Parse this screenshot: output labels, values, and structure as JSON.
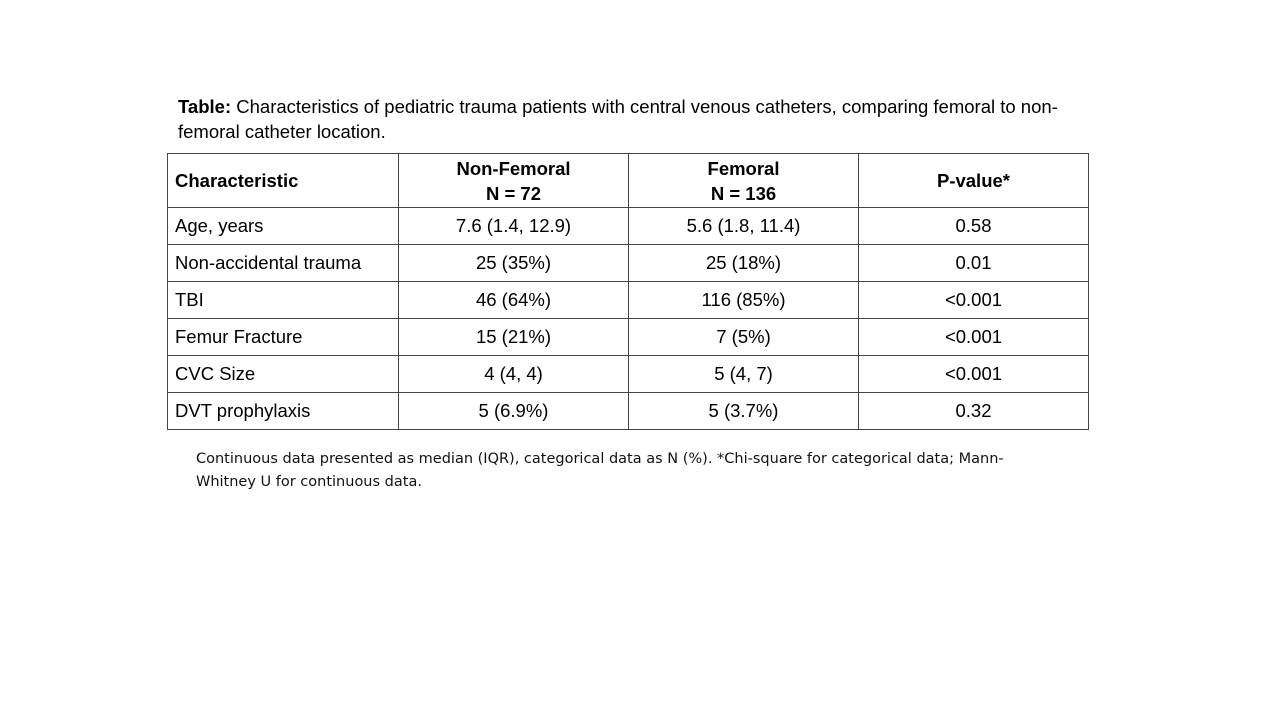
{
  "caption": {
    "label": "Table:",
    "text": "Characteristics of pediatric trauma patients with central venous catheters, comparing femoral to non-femoral catheter location."
  },
  "table": {
    "header": [
      [
        "Characteristic"
      ],
      [
        "Non-Femoral",
        "N = 72"
      ],
      [
        "Femoral",
        "N = 136"
      ],
      [
        "P-value*"
      ]
    ],
    "rows": [
      [
        "Age, years",
        "7.6 (1.4, 12.9)",
        "5.6 (1.8, 11.4)",
        "0.58"
      ],
      [
        "Non-accidental trauma",
        "25 (35%)",
        "25 (18%)",
        "0.01"
      ],
      [
        "TBI",
        "46 (64%)",
        "116 (85%)",
        "<0.001"
      ],
      [
        "Femur Fracture",
        "15 (21%)",
        "7 (5%)",
        "<0.001"
      ],
      [
        "CVC Size",
        "4 (4, 4)",
        "5 (4, 7)",
        "<0.001"
      ],
      [
        "DVT prophylaxis",
        "5 (6.9%)",
        "5 (3.7%)",
        "0.32"
      ]
    ]
  },
  "footnote": "Continuous data presented as median (IQR), categorical data as N (%). *Chi-square for categorical data; Mann-Whitney U for continuous data."
}
